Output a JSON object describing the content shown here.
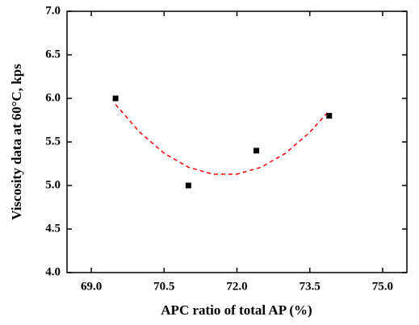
{
  "chart_data": {
    "type": "scatter",
    "x_label": "APC ratio of total AP (%)",
    "y_label": "Viscosity data at 60°C, kps",
    "xlim": [
      68.5,
      75.5
    ],
    "ylim": [
      4.0,
      7.0
    ],
    "xticks": [
      {
        "value": 69,
        "label": "69.0"
      },
      {
        "value": 70.5,
        "label": "70.5"
      },
      {
        "value": 72,
        "label": "72.0"
      },
      {
        "value": 73.5,
        "label": "73.5"
      },
      {
        "value": 75,
        "label": "75.0"
      }
    ],
    "yticks": [
      {
        "value": 4,
        "label": "4.0"
      },
      {
        "value": 4.5,
        "label": "4.5"
      },
      {
        "value": 5,
        "label": "5.0"
      },
      {
        "value": 5.5,
        "label": "5.5"
      },
      {
        "value": 6,
        "label": "6.0"
      },
      {
        "value": 6.5,
        "label": "6.5"
      },
      {
        "value": 7,
        "label": "7.0"
      }
    ],
    "points": {
      "color": "#000000",
      "x": [
        69.5,
        71.0,
        72.4,
        73.9
      ],
      "values": [
        6.0,
        5.0,
        5.4,
        5.8
      ]
    },
    "fit": {
      "color": "#ff0000",
      "x": [
        69.5,
        70.0,
        70.5,
        71.0,
        71.5,
        72.0,
        72.5,
        73.0,
        73.5,
        73.9
      ],
      "values": [
        5.93,
        5.61,
        5.37,
        5.21,
        5.13,
        5.13,
        5.21,
        5.37,
        5.61,
        5.86
      ]
    }
  }
}
